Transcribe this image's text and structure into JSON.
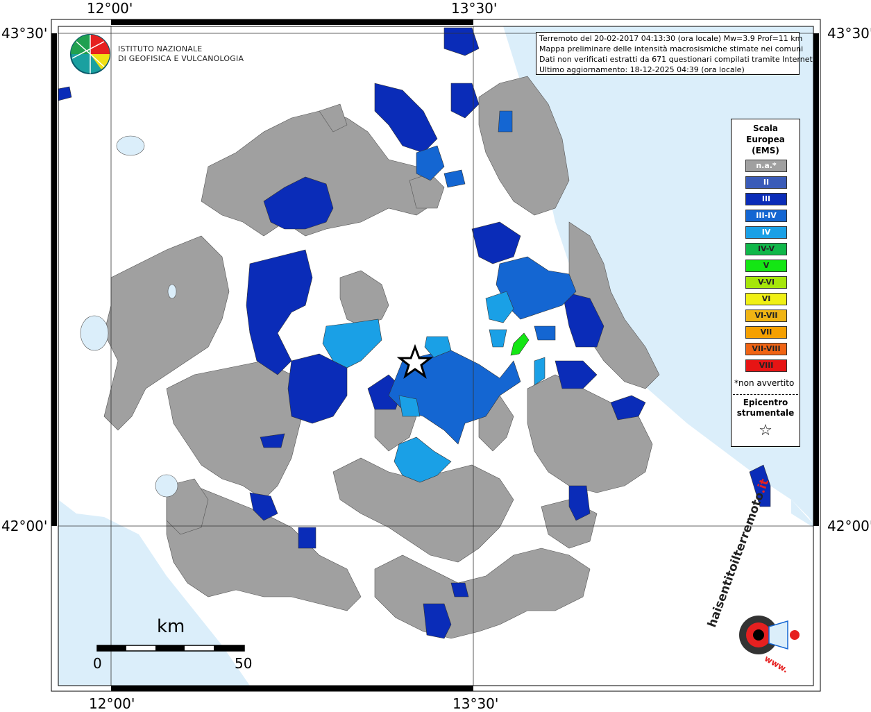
{
  "map": {
    "coords": {
      "top": [
        "12°00'",
        "13°30'"
      ],
      "bottom": [
        "12°00'",
        "13°30'"
      ],
      "left": [
        "43°30'",
        "42°00'"
      ],
      "right": [
        "43°30'",
        "42°00'"
      ]
    },
    "scale_bar": {
      "unit": "km",
      "start": "0",
      "end": "50"
    }
  },
  "header_logo": {
    "line1": "ISTITUTO NAZIONALE",
    "line2": "DI GEOFISICA E VULCANOLOGIA"
  },
  "info": {
    "line1": "Terremoto del 20-02-2017 04:13:30 (ora locale) Mw=3.9 Prof=11 km",
    "line2": "Mappa preliminare delle intensità macrosismiche stimate nei comuni",
    "line3": "Dati non verificati estratti da 671 questionari compilati tramite Internet.",
    "line4": "Ultimo aggiornamento: 18-12-2025 04:39 (ora locale)"
  },
  "legend": {
    "title1": "Scala",
    "title2": "Europea",
    "title3": "(EMS)",
    "items": [
      {
        "label": "n.a.*",
        "color": "#a0a0a0"
      },
      {
        "label": "II",
        "color": "#3a5bb8"
      },
      {
        "label": "III",
        "color": "#0a2cb8"
      },
      {
        "label": "III-IV",
        "color": "#1466d2"
      },
      {
        "label": "IV",
        "color": "#1aa0e6"
      },
      {
        "label": "IV-V",
        "color": "#10b84a"
      },
      {
        "label": "V",
        "color": "#14e614"
      },
      {
        "label": "V-VI",
        "color": "#a6e60a"
      },
      {
        "label": "VI",
        "color": "#f0f014"
      },
      {
        "label": "VI-VII",
        "color": "#f0b414"
      },
      {
        "label": "VII",
        "color": "#f5a000"
      },
      {
        "label": "VII-VIII",
        "color": "#f06414"
      },
      {
        "label": "VIII",
        "color": "#e61414"
      }
    ],
    "note": "*non avvertito",
    "epicenter_label1": "Epicentro",
    "epicenter_label2": "strumentale",
    "epicenter_symbol": "☆"
  },
  "bottom_logo": {
    "text1": "haisentitoilterremoto",
    "text2": ".it",
    "text3": "www."
  }
}
